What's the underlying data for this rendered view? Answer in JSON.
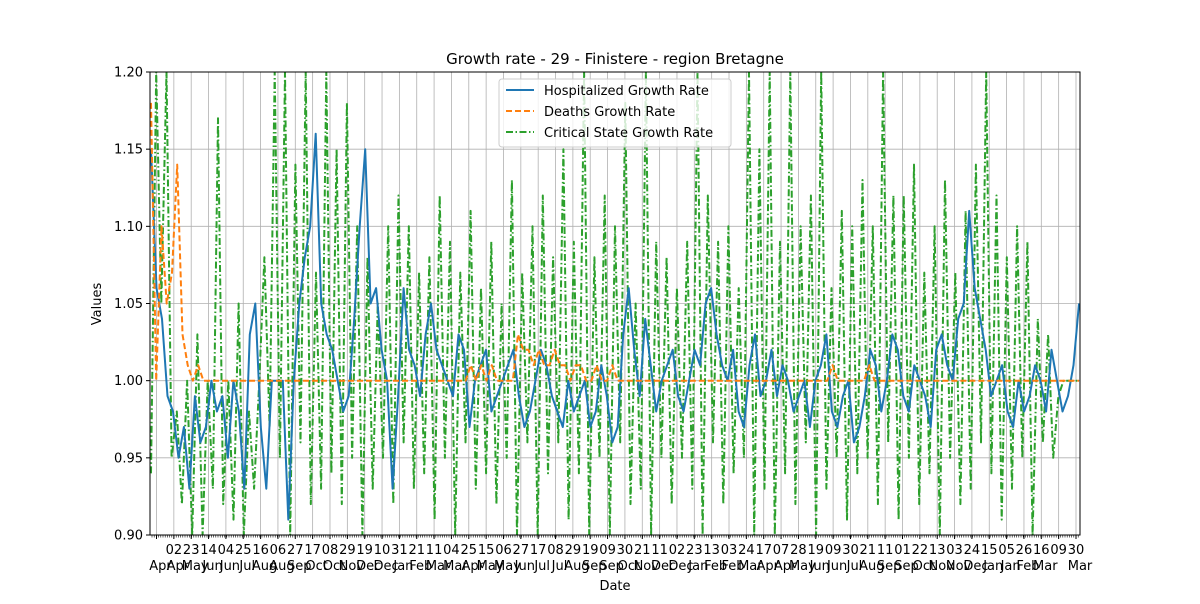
{
  "chart_data": {
    "type": "line",
    "title": "Growth rate - 29 - Finistere - region Bretagne",
    "xlabel": "Date",
    "ylabel": "Values",
    "ylim": [
      0.9,
      1.2
    ],
    "yticks": [
      "0.90",
      "0.95",
      "1.00",
      "1.05",
      "1.10",
      "1.15",
      "1.20"
    ],
    "grid": true,
    "legend_position": "top-center",
    "x_tick_labels": [
      {
        "day": "",
        "month": "Apr"
      },
      {
        "day": "02",
        "month": "Apr"
      },
      {
        "day": "23",
        "month": "May"
      },
      {
        "day": "14",
        "month": "Jun"
      },
      {
        "day": "04",
        "month": "Jun"
      },
      {
        "day": "25",
        "month": "Jul"
      },
      {
        "day": "16",
        "month": "Aug"
      },
      {
        "day": "06",
        "month": "Aug"
      },
      {
        "day": "27",
        "month": "Sep"
      },
      {
        "day": "17",
        "month": "Oct"
      },
      {
        "day": "08",
        "month": "Oct"
      },
      {
        "day": "29",
        "month": "Nov"
      },
      {
        "day": "19",
        "month": "Dec"
      },
      {
        "day": "10",
        "month": "Dec"
      },
      {
        "day": "31",
        "month": "Jan"
      },
      {
        "day": "21",
        "month": "Feb"
      },
      {
        "day": "11",
        "month": "Mar"
      },
      {
        "day": "04",
        "month": "Mar"
      },
      {
        "day": "25",
        "month": "Apr"
      },
      {
        "day": "15",
        "month": "May"
      },
      {
        "day": "06",
        "month": "May"
      },
      {
        "day": "27",
        "month": "Jun"
      },
      {
        "day": "17",
        "month": "Jul"
      },
      {
        "day": "08",
        "month": "Jul"
      },
      {
        "day": "29",
        "month": "Aug"
      },
      {
        "day": "19",
        "month": "Sep"
      },
      {
        "day": "09",
        "month": "Sep"
      },
      {
        "day": "30",
        "month": "Oct"
      },
      {
        "day": "21",
        "month": "Nov"
      },
      {
        "day": "11",
        "month": "Dec"
      },
      {
        "day": "02",
        "month": "Dec"
      },
      {
        "day": "23",
        "month": "Jan"
      },
      {
        "day": "13",
        "month": "Feb"
      },
      {
        "day": "03",
        "month": "Feb"
      },
      {
        "day": "24",
        "month": "Mar"
      },
      {
        "day": "17",
        "month": "Apr"
      },
      {
        "day": "07",
        "month": "Apr"
      },
      {
        "day": "28",
        "month": "May"
      },
      {
        "day": "19",
        "month": "Jun"
      },
      {
        "day": "09",
        "month": "Jun"
      },
      {
        "day": "30",
        "month": "Jul"
      },
      {
        "day": "21",
        "month": "Aug"
      },
      {
        "day": "11",
        "month": "Sep"
      },
      {
        "day": "01",
        "month": "Sep"
      },
      {
        "day": "22",
        "month": "Oct"
      },
      {
        "day": "13",
        "month": "Nov"
      },
      {
        "day": "03",
        "month": "Nov"
      },
      {
        "day": "24",
        "month": "Dec"
      },
      {
        "day": "15",
        "month": "Jan"
      },
      {
        "day": "05",
        "month": "Jan"
      },
      {
        "day": "26",
        "month": "Feb"
      },
      {
        "day": "16",
        "month": "Mar"
      },
      {
        "day": "09",
        "month": ""
      },
      {
        "day": "30",
        "month": "Mar"
      }
    ],
    "series": [
      {
        "name": "Hospitalized Growth Rate",
        "color": "#1f77b4",
        "style": "solid",
        "values": [
          1.15,
          1.06,
          1.04,
          0.99,
          0.98,
          0.95,
          0.97,
          0.93,
          0.99,
          0.96,
          0.97,
          1.0,
          0.98,
          0.99,
          0.95,
          1.0,
          0.98,
          0.93,
          1.03,
          1.05,
          0.97,
          0.93,
          1.0,
          1.0,
          1.0,
          0.91,
          1.0,
          1.05,
          1.08,
          1.1,
          1.16,
          1.05,
          1.03,
          1.02,
          1.0,
          0.98,
          0.99,
          1.04,
          1.1,
          1.15,
          1.05,
          1.06,
          1.02,
          1.0,
          0.93,
          0.99,
          1.06,
          1.02,
          1.01,
          0.99,
          1.03,
          1.05,
          1.02,
          1.01,
          1.0,
          0.99,
          1.03,
          1.02,
          0.97,
          1.0,
          1.01,
          1.02,
          0.98,
          0.99,
          1.0,
          1.01,
          1.02,
          0.99,
          0.97,
          0.98,
          1.0,
          1.02,
          1.01,
          0.99,
          0.98,
          0.97,
          1.0,
          0.98,
          0.99,
          1.0,
          0.97,
          0.98,
          1.01,
          0.99,
          0.96,
          0.97,
          1.03,
          1.06,
          1.02,
          0.99,
          1.04,
          1.01,
          0.98,
          1.0,
          1.01,
          1.02,
          0.99,
          0.98,
          1.0,
          1.02,
          1.01,
          1.05,
          1.06,
          1.03,
          1.01,
          1.0,
          1.02,
          0.98,
          0.97,
          1.01,
          1.03,
          0.99,
          1.0,
          1.02,
          0.99,
          1.01,
          1.0,
          0.98,
          0.99,
          1.0,
          0.97,
          1.0,
          1.01,
          1.03,
          0.98,
          0.97,
          0.99,
          1.0,
          0.96,
          0.97,
          0.99,
          1.02,
          1.01,
          0.98,
          1.0,
          1.03,
          1.02,
          0.99,
          0.98,
          1.01,
          1.0,
          0.99,
          0.97,
          1.02,
          1.03,
          1.01,
          1.0,
          1.04,
          1.05,
          1.11,
          1.06,
          1.04,
          1.02,
          0.99,
          1.0,
          1.01,
          0.98,
          0.97,
          1.0,
          0.98,
          0.99,
          1.01,
          1.0,
          0.98,
          1.02,
          1.0,
          0.98,
          0.99,
          1.01,
          1.05
        ]
      },
      {
        "name": "Deaths Growth Rate",
        "color": "#ff7f0e",
        "style": "dashed",
        "values": [
          1.18,
          1.0,
          1.1,
          1.05,
          1.07,
          1.14,
          1.03,
          1.01,
          1.0,
          1.01,
          1.0,
          1.0,
          1.0,
          1.0,
          1.0,
          1.0,
          1.0,
          1.0,
          1.0,
          1.0,
          1.0,
          1.0,
          1.0,
          1.0,
          1.0,
          1.0,
          1.0,
          1.0,
          1.0,
          1.0,
          1.0,
          1.0,
          1.0,
          1.0,
          1.0,
          1.0,
          1.0,
          1.0,
          1.0,
          1.0,
          1.0,
          1.0,
          1.0,
          1.0,
          1.0,
          1.0,
          1.0,
          1.0,
          1.0,
          1.0,
          1.0,
          1.0,
          1.0,
          1.0,
          1.0,
          1.0,
          1.0,
          1.0,
          1.0,
          1.0,
          1.0,
          1.01,
          1.0,
          1.01,
          1.0,
          1.01,
          1.0,
          1.0,
          1.0,
          1.0,
          1.03,
          1.02,
          1.02,
          1.01,
          1.02,
          1.01,
          1.01,
          1.02,
          1.01,
          1.01,
          1.0,
          1.01,
          1.01,
          1.0,
          1.0,
          1.01,
          1.0,
          1.0,
          1.01,
          1.0,
          1.0,
          1.0,
          1.0,
          1.0,
          1.0,
          1.0,
          1.0,
          1.0,
          1.0,
          1.0,
          1.0,
          1.0,
          1.0,
          1.0,
          1.0,
          1.0,
          1.0,
          1.0,
          1.0,
          1.0,
          1.0,
          1.0,
          1.0,
          1.0,
          1.0,
          1.0,
          1.0,
          1.0,
          1.0,
          1.0,
          1.0,
          1.0,
          1.0,
          1.0,
          1.0,
          1.0,
          1.0,
          1.0,
          1.0,
          1.0,
          1.01,
          1.0,
          1.0,
          1.0,
          1.0,
          1.0,
          1.0,
          1.01,
          1.0,
          1.0,
          1.0,
          1.0,
          1.0,
          1.0,
          1.0,
          1.0,
          1.0,
          1.0,
          1.0,
          1.0,
          1.0,
          1.0,
          1.0,
          1.0,
          1.0,
          1.0,
          1.0,
          1.0,
          1.0,
          1.0,
          1.0,
          1.0,
          1.0,
          1.0,
          1.0,
          1.0,
          1.0,
          1.0,
          1.0,
          1.0,
          1.0,
          1.0,
          1.0,
          1.0,
          1.0,
          1.0,
          1.0,
          1.0
        ]
      },
      {
        "name": "Critical State Growth Rate",
        "color": "#2ca02c",
        "style": "dashdot",
        "values": [
          0.94,
          1.2,
          1.05,
          1.2,
          0.95,
          0.98,
          0.92,
          1.0,
          0.9,
          1.03,
          0.9,
          1.0,
          0.93,
          1.17,
          0.92,
          1.0,
          0.91,
          1.05,
          0.9,
          0.98,
          0.93,
          1.0,
          1.08,
          0.97,
          1.2,
          0.95,
          1.2,
          0.9,
          1.14,
          0.96,
          1.2,
          0.92,
          1.07,
          0.93,
          1.2,
          0.94,
          1.15,
          0.92,
          1.18,
          0.95,
          1.1,
          0.9,
          1.08,
          0.93,
          1.05,
          0.95,
          1.1,
          0.92,
          1.12,
          0.96,
          1.1,
          0.93,
          1.07,
          0.94,
          1.08,
          0.91,
          1.12,
          0.95,
          1.09,
          0.9,
          1.07,
          0.96,
          1.11,
          0.93,
          1.06,
          0.94,
          1.09,
          0.92,
          1.05,
          0.95,
          1.13,
          0.9,
          1.07,
          0.96,
          1.1,
          0.9,
          1.12,
          0.94,
          1.08,
          0.96,
          1.15,
          0.91,
          1.09,
          0.94,
          1.2,
          0.9,
          1.08,
          0.95,
          1.12,
          0.9,
          1.1,
          0.96,
          1.18,
          0.92,
          1.05,
          0.93,
          1.2,
          0.9,
          1.09,
          0.95,
          1.08,
          0.92,
          1.06,
          0.95,
          1.09,
          0.93,
          1.2,
          0.9,
          1.12,
          0.96,
          1.09,
          0.92,
          1.1,
          0.94,
          1.06,
          0.95,
          1.2,
          0.9,
          1.15,
          0.93,
          1.2,
          0.9,
          1.09,
          0.94,
          1.2,
          0.92,
          1.1,
          0.96,
          1.12,
          0.9,
          1.2,
          0.93,
          1.06,
          0.95,
          1.11,
          0.91,
          1.1,
          0.94,
          1.13,
          0.95,
          1.1,
          0.92,
          1.2,
          0.96,
          1.12,
          0.91,
          1.12,
          0.95,
          1.14,
          0.92,
          1.07,
          0.94,
          1.1,
          0.9,
          1.13,
          0.95,
          1.07,
          0.92,
          1.11,
          0.93,
          1.14,
          0.96,
          1.2,
          0.94,
          1.12,
          0.91,
          1.08,
          0.93,
          1.1,
          0.95,
          1.09,
          0.9,
          1.04,
          0.96,
          1.03,
          0.95,
          0.99,
          1.0,
          1.0,
          1.0,
          1.0
        ]
      }
    ]
  }
}
